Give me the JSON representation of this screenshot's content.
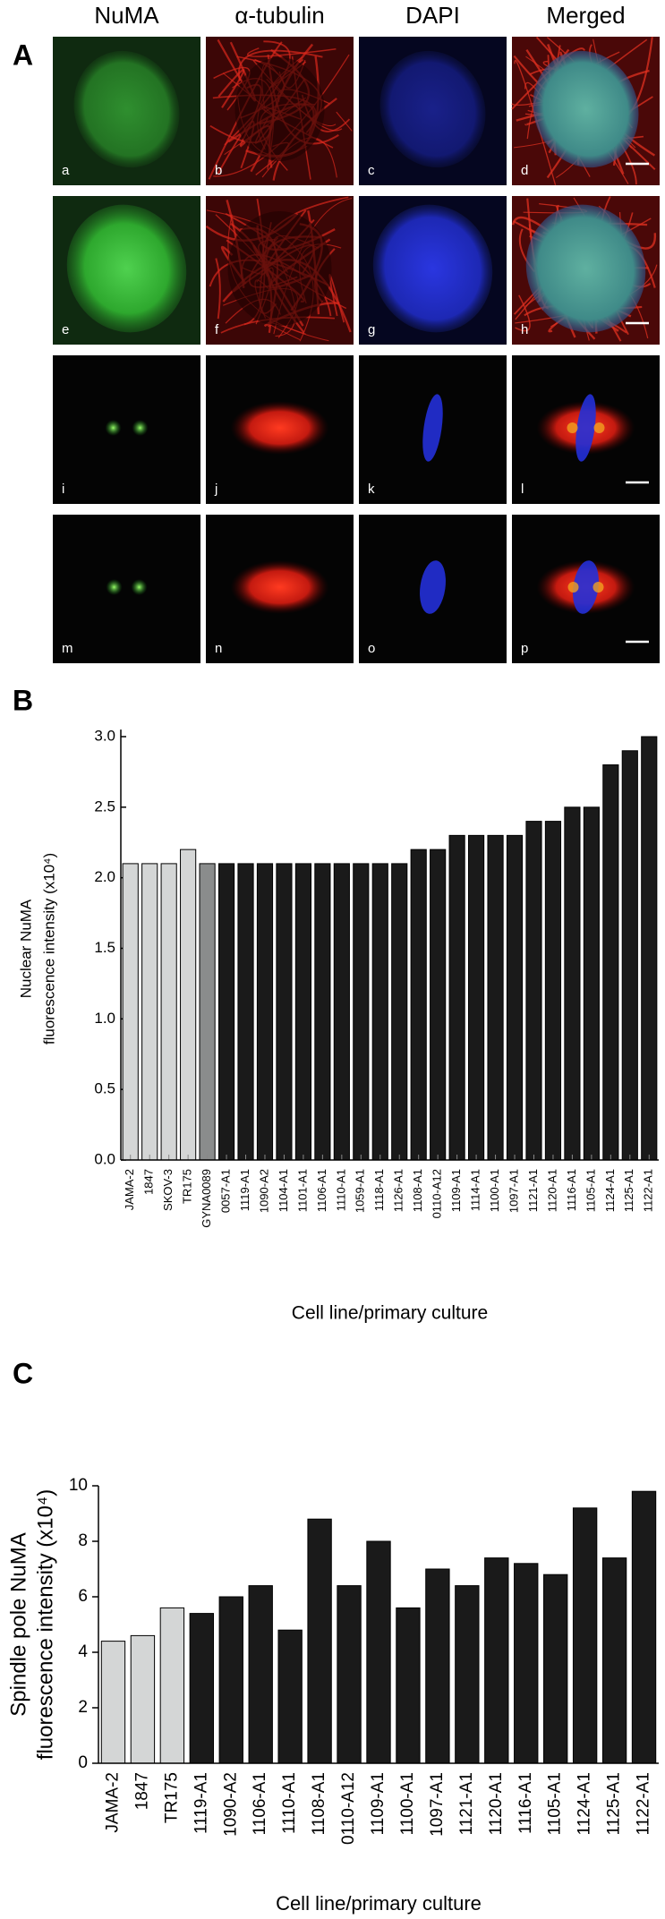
{
  "figure": {
    "image_panel": {
      "panel_label": "A",
      "column_headers": [
        "NuMA",
        "α-tubulin",
        "DAPI",
        "Merged"
      ],
      "cell_labels": [
        "a",
        "b",
        "c",
        "d",
        "e",
        "f",
        "g",
        "h",
        "i",
        "j",
        "k",
        "l",
        "m",
        "n",
        "o",
        "p"
      ]
    }
  },
  "chart_data": [
    {
      "type": "bar",
      "panel_label": "B",
      "ylabel": [
        "Nuclear NuMA",
        "fluorescence intensity (x10⁴)"
      ],
      "xlabel": "Cell line/primary culture",
      "categories": [
        "JAMA-2",
        "1847",
        "SKOV-3",
        "TR175",
        "GYNA0089",
        "0057-A1",
        "1119-A1",
        "1090-A2",
        "1104-A1",
        "1101-A1",
        "1106-A1",
        "1110-A1",
        "1059-A1",
        "1118-A1",
        "1126-A1",
        "1108-A1",
        "0110-A12",
        "1109-A1",
        "1114-A1",
        "1100-A1",
        "1097-A1",
        "1121-A1",
        "1120-A1",
        "1116-A1",
        "1105-A1",
        "1124-A1",
        "1125-A1",
        "1122-A1"
      ],
      "values": [
        2.1,
        2.1,
        2.1,
        2.2,
        2.1,
        2.1,
        2.1,
        2.1,
        2.1,
        2.1,
        2.1,
        2.1,
        2.1,
        2.1,
        2.1,
        2.2,
        2.2,
        2.3,
        2.3,
        2.3,
        2.3,
        2.4,
        2.4,
        2.5,
        2.5,
        2.8,
        2.9,
        3.0
      ],
      "colors": [
        "#d4d6d6",
        "#d4d6d6",
        "#d4d6d6",
        "#d4d6d6",
        "#8a8c8c",
        "#1a1a1a",
        "#1a1a1a",
        "#1a1a1a",
        "#1a1a1a",
        "#1a1a1a",
        "#1a1a1a",
        "#1a1a1a",
        "#1a1a1a",
        "#1a1a1a",
        "#1a1a1a",
        "#1a1a1a",
        "#1a1a1a",
        "#1a1a1a",
        "#1a1a1a",
        "#1a1a1a",
        "#1a1a1a",
        "#1a1a1a",
        "#1a1a1a",
        "#1a1a1a",
        "#1a1a1a",
        "#1a1a1a",
        "#1a1a1a",
        "#1a1a1a"
      ],
      "ylim": [
        0,
        3.05
      ],
      "yticks": [
        {
          "value": 0,
          "label": "0.0"
        },
        0.5,
        {
          "value": 1,
          "label": "1.0"
        },
        1.5,
        {
          "value": 2,
          "label": "2.0"
        },
        2.5,
        {
          "value": 3,
          "label": "3.0"
        }
      ]
    },
    {
      "type": "bar",
      "panel_label": "C",
      "ylabel": [
        "Spindle pole NuMA",
        "fluorescence intensity (x10⁴)"
      ],
      "xlabel": "Cell line/primary culture",
      "categories": [
        "JAMA-2",
        "1847",
        "TR175",
        "1119-A1",
        "1090-A2",
        "1106-A1",
        "1110-A1",
        "1108-A1",
        "0110-A12",
        "1109-A1",
        "1100-A1",
        "1097-A1",
        "1121-A1",
        "1120-A1",
        "1116-A1",
        "1105-A1",
        "1124-A1",
        "1125-A1",
        "1122-A1"
      ],
      "values": [
        4.4,
        4.6,
        5.6,
        5.4,
        6.0,
        6.4,
        4.8,
        8.8,
        6.4,
        8.0,
        5.6,
        7.0,
        6.4,
        7.4,
        7.2,
        6.8,
        9.2,
        7.4,
        9.8
      ],
      "colors": [
        "#d4d6d6",
        "#d4d6d6",
        "#d4d6d6",
        "#1a1a1a",
        "#1a1a1a",
        "#1a1a1a",
        "#1a1a1a",
        "#1a1a1a",
        "#1a1a1a",
        "#1a1a1a",
        "#1a1a1a",
        "#1a1a1a",
        "#1a1a1a",
        "#1a1a1a",
        "#1a1a1a",
        "#1a1a1a",
        "#1a1a1a",
        "#1a1a1a",
        "#1a1a1a"
      ],
      "ylim": [
        0,
        10
      ],
      "yticks": [
        0,
        2,
        4,
        6,
        8,
        10
      ]
    }
  ]
}
